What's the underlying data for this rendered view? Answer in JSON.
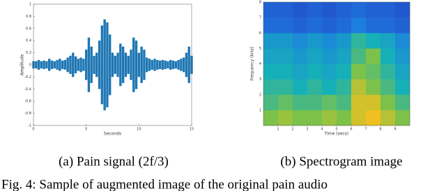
{
  "chart_data": [
    {
      "type": "waveform",
      "color": "#1f77b4",
      "xlabel": "Seconds",
      "ylabel": "Amplitude",
      "caption": "(a) Pain signal (2f/3)",
      "xlim": [
        0,
        15
      ],
      "xticks": [
        0,
        5,
        10,
        15
      ],
      "ylim": [
        -1,
        1
      ],
      "yticks": [
        -1,
        -0.8,
        -0.6,
        -0.4,
        -0.2,
        0,
        0.2,
        0.4,
        0.6,
        0.8,
        1
      ],
      "x": [
        0,
        0.25,
        0.5,
        0.75,
        1,
        1.25,
        1.5,
        1.75,
        2,
        2.25,
        2.5,
        2.75,
        3,
        3.25,
        3.5,
        3.75,
        4,
        4.25,
        4.5,
        4.75,
        5,
        5.25,
        5.5,
        5.75,
        6,
        6.25,
        6.5,
        6.75,
        7,
        7.25,
        7.5,
        7.75,
        8,
        8.25,
        8.5,
        8.75,
        9,
        9.25,
        9.5,
        9.75,
        10,
        10.25,
        10.5,
        10.75,
        11,
        11.25,
        11.5,
        11.75,
        12,
        12.25,
        12.5,
        12.75,
        13,
        13.25,
        13.5,
        13.75,
        14,
        14.25,
        14.5,
        14.75,
        15
      ],
      "values": [
        0.06,
        0.06,
        0.08,
        0.06,
        0.07,
        0.06,
        0.1,
        0.07,
        0.06,
        0.08,
        0.1,
        0.07,
        0.08,
        0.12,
        0.15,
        0.2,
        0.14,
        0.1,
        0.12,
        0.1,
        0.25,
        0.45,
        0.3,
        0.15,
        0.2,
        0.4,
        0.65,
        0.75,
        0.7,
        0.5,
        0.2,
        0.15,
        0.2,
        0.35,
        0.3,
        0.2,
        0.15,
        0.25,
        0.45,
        0.4,
        0.2,
        0.3,
        0.25,
        0.12,
        0.1,
        0.08,
        0.1,
        0.08,
        0.07,
        0.08,
        0.07,
        0.06,
        0.08,
        0.07,
        0.06,
        0.08,
        0.1,
        0.12,
        0.2,
        0.3,
        0.15
      ]
    },
    {
      "type": "heatmap",
      "xlabel": "Time (secs)",
      "ylabel": "Frequency (kHz)",
      "caption": "(b) Spectrogram image",
      "xlim": [
        0,
        10
      ],
      "xticks": [
        1,
        2,
        3,
        4,
        5,
        6,
        7,
        8,
        9
      ],
      "ylim": [
        0,
        8
      ],
      "yticks": [
        1,
        2,
        3,
        4,
        5,
        6,
        7,
        8
      ],
      "z": [
        [
          0.7,
          0.75,
          0.7,
          0.7,
          0.75,
          0.7,
          0.85,
          0.9,
          0.8,
          0.7
        ],
        [
          0.6,
          0.65,
          0.6,
          0.6,
          0.65,
          0.6,
          0.85,
          0.85,
          0.7,
          0.6
        ],
        [
          0.55,
          0.55,
          0.5,
          0.55,
          0.5,
          0.55,
          0.8,
          0.7,
          0.6,
          0.5
        ],
        [
          0.5,
          0.5,
          0.45,
          0.5,
          0.45,
          0.5,
          0.7,
          0.65,
          0.55,
          0.45
        ],
        [
          0.45,
          0.45,
          0.4,
          0.45,
          0.4,
          0.45,
          0.6,
          0.7,
          0.5,
          0.4
        ],
        [
          0.4,
          0.4,
          0.35,
          0.4,
          0.35,
          0.4,
          0.55,
          0.5,
          0.45,
          0.35
        ],
        [
          0.2,
          0.2,
          0.15,
          0.2,
          0.15,
          0.2,
          0.3,
          0.2,
          0.2,
          0.15
        ],
        [
          0.15,
          0.15,
          0.1,
          0.15,
          0.1,
          0.15,
          0.2,
          0.15,
          0.15,
          0.1
        ]
      ]
    }
  ],
  "figure_caption": "Fig. 4: Sample of augmented image of the original pain audio"
}
